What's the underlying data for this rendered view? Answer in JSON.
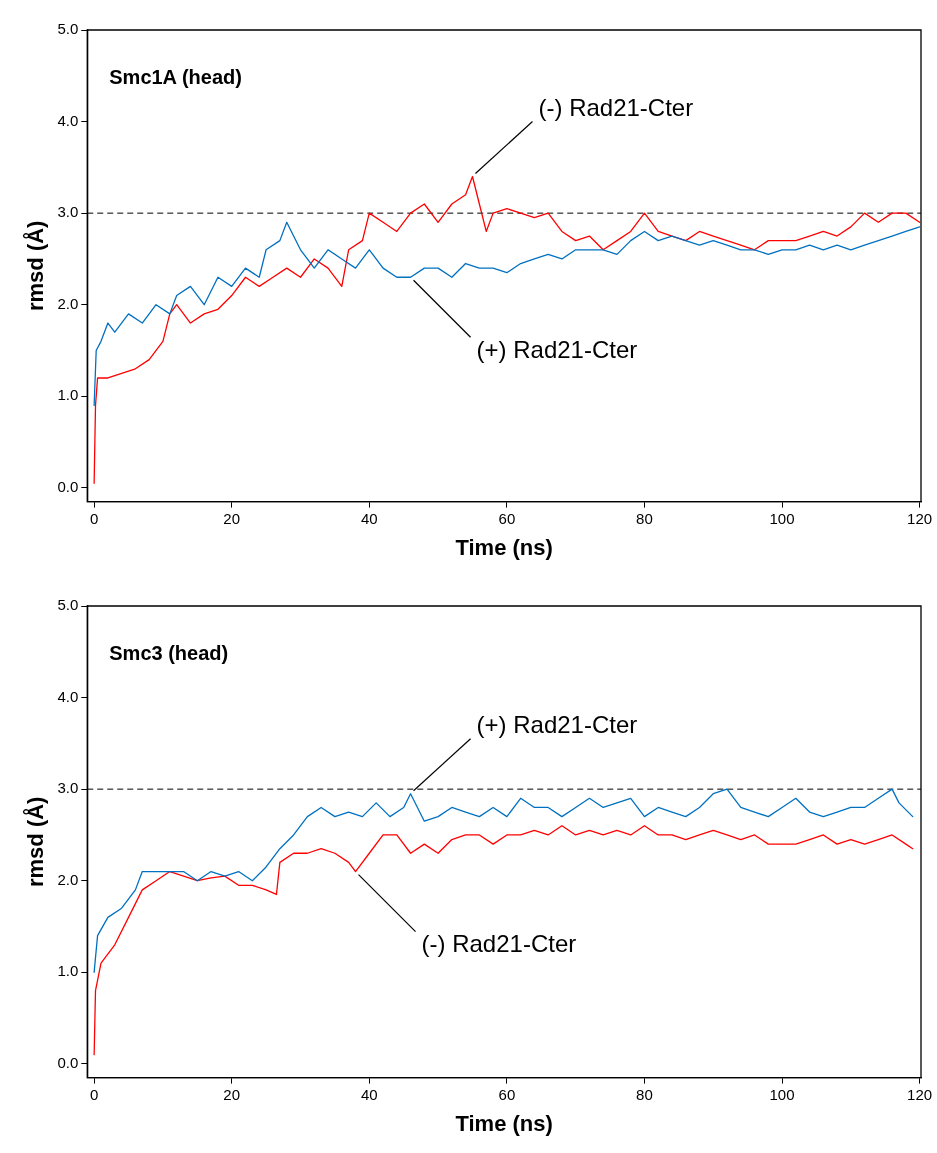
{
  "chart_data": [
    {
      "type": "line",
      "title": "Smc1A (head)",
      "xlabel": "Time (ns)",
      "ylabel": "rmsd (Å)",
      "xlim": [
        -1,
        120.2
      ],
      "ylim": [
        -0.15,
        5
      ],
      "xticks": [
        0,
        20,
        40,
        60,
        80,
        100,
        120
      ],
      "yticks": [
        {
          "value": 0,
          "label": "0.0"
        },
        {
          "value": 1,
          "label": "1.0"
        },
        {
          "value": 2,
          "label": "2.0"
        },
        {
          "value": 3,
          "label": "3.0"
        },
        {
          "value": 4,
          "label": "4.0"
        },
        {
          "value": 5,
          "label": "5.0"
        }
      ],
      "marker": "none",
      "line_style": "solid",
      "ref_lines": [
        {
          "axis": "y",
          "value": 3,
          "line_style": "dashed",
          "color": "#000000"
        }
      ],
      "annotations": [
        {
          "text": "(-) Rad21-Cter",
          "x": 55,
          "y": 3.4
        },
        {
          "text": "(+) Rad21-Cter",
          "x": 46,
          "y": 2.3
        }
      ],
      "series": [
        {
          "color": "#0070c0",
          "x": [
            0,
            0.3,
            1,
            2,
            3,
            5,
            7,
            9,
            11,
            12,
            14,
            16,
            18,
            20,
            22,
            24,
            25,
            27,
            28,
            30,
            32,
            34,
            36,
            38,
            40,
            42,
            44,
            46,
            48,
            50,
            52,
            54,
            56,
            58,
            60,
            62,
            64,
            66,
            68,
            70,
            72,
            74,
            76,
            78,
            80,
            82,
            84,
            86,
            88,
            90,
            92,
            94,
            96,
            98,
            100,
            102,
            104,
            106,
            108,
            110,
            112,
            114,
            116,
            118,
            120
          ],
          "values": [
            0.9,
            1.5,
            1.6,
            1.8,
            1.7,
            1.9,
            1.8,
            2.0,
            1.9,
            2.1,
            2.2,
            2.0,
            2.3,
            2.2,
            2.4,
            2.3,
            2.6,
            2.7,
            2.9,
            2.6,
            2.4,
            2.6,
            2.5,
            2.4,
            2.6,
            2.4,
            2.3,
            2.3,
            2.4,
            2.4,
            2.3,
            2.45,
            2.4,
            2.4,
            2.35,
            2.45,
            2.5,
            2.55,
            2.5,
            2.6,
            2.6,
            2.6,
            2.55,
            2.7,
            2.8,
            2.7,
            2.75,
            2.7,
            2.65,
            2.7,
            2.65,
            2.6,
            2.6,
            2.55,
            2.6,
            2.6,
            2.65,
            2.6,
            2.65,
            2.6,
            2.65,
            2.7,
            2.75,
            2.8,
            2.85
          ]
        },
        {
          "color": "#ff0000",
          "x": [
            0,
            0.2,
            0.5,
            2,
            4,
            6,
            8,
            10,
            11,
            12,
            14,
            16,
            18,
            20,
            22,
            24,
            26,
            28,
            30,
            32,
            34,
            36,
            37,
            39,
            40,
            42,
            44,
            46,
            48,
            50,
            52,
            54,
            55,
            56,
            57,
            58,
            60,
            62,
            64,
            66,
            68,
            70,
            72,
            74,
            76,
            78,
            80,
            82,
            84,
            86,
            88,
            90,
            92,
            94,
            96,
            98,
            100,
            102,
            104,
            106,
            108,
            110,
            112,
            114,
            116,
            118,
            120
          ],
          "values": [
            0.05,
            0.9,
            1.2,
            1.2,
            1.25,
            1.3,
            1.4,
            1.6,
            1.9,
            2.0,
            1.8,
            1.9,
            1.95,
            2.1,
            2.3,
            2.2,
            2.3,
            2.4,
            2.3,
            2.5,
            2.4,
            2.2,
            2.6,
            2.7,
            3.0,
            2.9,
            2.8,
            3.0,
            3.1,
            2.9,
            3.1,
            3.2,
            3.4,
            3.1,
            2.8,
            3.0,
            3.05,
            3.0,
            2.95,
            3.0,
            2.8,
            2.7,
            2.75,
            2.6,
            2.7,
            2.8,
            3.0,
            2.8,
            2.75,
            2.7,
            2.8,
            2.75,
            2.7,
            2.65,
            2.6,
            2.7,
            2.7,
            2.7,
            2.75,
            2.8,
            2.75,
            2.85,
            3.0,
            2.9,
            3.0,
            3.0,
            2.9
          ]
        }
      ]
    },
    {
      "type": "line",
      "title": "Smc3 (head)",
      "xlabel": "Time (ns)",
      "ylabel": "rmsd (Å)",
      "xlim": [
        -1,
        120.2
      ],
      "ylim": [
        -0.15,
        5
      ],
      "xticks": [
        0,
        20,
        40,
        60,
        80,
        100,
        120
      ],
      "yticks": [
        {
          "value": 0,
          "label": "0.0"
        },
        {
          "value": 1,
          "label": "1.0"
        },
        {
          "value": 2,
          "label": "2.0"
        },
        {
          "value": 3,
          "label": "3.0"
        },
        {
          "value": 4,
          "label": "4.0"
        },
        {
          "value": 5,
          "label": "5.0"
        }
      ],
      "marker": "none",
      "line_style": "solid",
      "ref_lines": [
        {
          "axis": "y",
          "value": 3,
          "line_style": "dashed",
          "color": "#000000"
        }
      ],
      "annotations": [
        {
          "text": "(+) Rad21-Cter",
          "x": 46,
          "y": 2.95
        },
        {
          "text": "(-) Rad21-Cter",
          "x": 38,
          "y": 2.1
        }
      ],
      "series": [
        {
          "color": "#0070c0",
          "x": [
            0,
            0.5,
            2,
            4,
            6,
            7,
            9,
            11,
            13,
            15,
            17,
            19,
            21,
            23,
            25,
            27,
            29,
            31,
            33,
            35,
            37,
            39,
            41,
            43,
            45,
            46,
            48,
            50,
            52,
            54,
            56,
            58,
            60,
            62,
            64,
            66,
            68,
            70,
            72,
            74,
            76,
            78,
            80,
            82,
            84,
            86,
            88,
            90,
            92,
            94,
            96,
            98,
            100,
            102,
            104,
            106,
            108,
            110,
            112,
            114,
            116,
            117,
            119
          ],
          "values": [
            1.0,
            1.4,
            1.6,
            1.7,
            1.9,
            2.1,
            2.1,
            2.1,
            2.1,
            2.0,
            2.1,
            2.05,
            2.1,
            2.0,
            2.15,
            2.35,
            2.5,
            2.7,
            2.8,
            2.7,
            2.75,
            2.7,
            2.85,
            2.7,
            2.8,
            2.95,
            2.65,
            2.7,
            2.8,
            2.75,
            2.7,
            2.8,
            2.7,
            2.9,
            2.8,
            2.8,
            2.7,
            2.8,
            2.9,
            2.8,
            2.85,
            2.9,
            2.7,
            2.8,
            2.75,
            2.7,
            2.8,
            2.95,
            3.0,
            2.8,
            2.75,
            2.7,
            2.8,
            2.9,
            2.75,
            2.7,
            2.75,
            2.8,
            2.8,
            2.9,
            3.0,
            2.85,
            2.7
          ]
        },
        {
          "color": "#ff0000",
          "x": [
            0,
            0.2,
            1,
            3,
            5,
            7,
            9,
            11,
            13,
            15,
            17,
            19,
            21,
            23,
            25,
            26.5,
            27,
            29,
            31,
            33,
            35,
            37,
            38,
            40,
            42,
            44,
            46,
            48,
            50,
            52,
            54,
            56,
            58,
            60,
            62,
            64,
            66,
            68,
            70,
            72,
            74,
            76,
            78,
            80,
            82,
            84,
            86,
            88,
            90,
            92,
            94,
            96,
            98,
            100,
            102,
            104,
            106,
            108,
            110,
            112,
            114,
            116,
            118,
            119
          ],
          "values": [
            0.1,
            0.8,
            1.1,
            1.3,
            1.6,
            1.9,
            2.0,
            2.1,
            2.05,
            2.0,
            2.03,
            2.05,
            1.95,
            1.95,
            1.9,
            1.85,
            2.2,
            2.3,
            2.3,
            2.35,
            2.3,
            2.2,
            2.1,
            2.3,
            2.5,
            2.5,
            2.3,
            2.4,
            2.3,
            2.45,
            2.5,
            2.5,
            2.4,
            2.5,
            2.5,
            2.55,
            2.5,
            2.6,
            2.5,
            2.55,
            2.5,
            2.55,
            2.5,
            2.6,
            2.5,
            2.5,
            2.45,
            2.5,
            2.55,
            2.5,
            2.45,
            2.5,
            2.4,
            2.4,
            2.4,
            2.45,
            2.5,
            2.4,
            2.45,
            2.4,
            2.45,
            2.5,
            2.4,
            2.35
          ]
        }
      ]
    }
  ]
}
